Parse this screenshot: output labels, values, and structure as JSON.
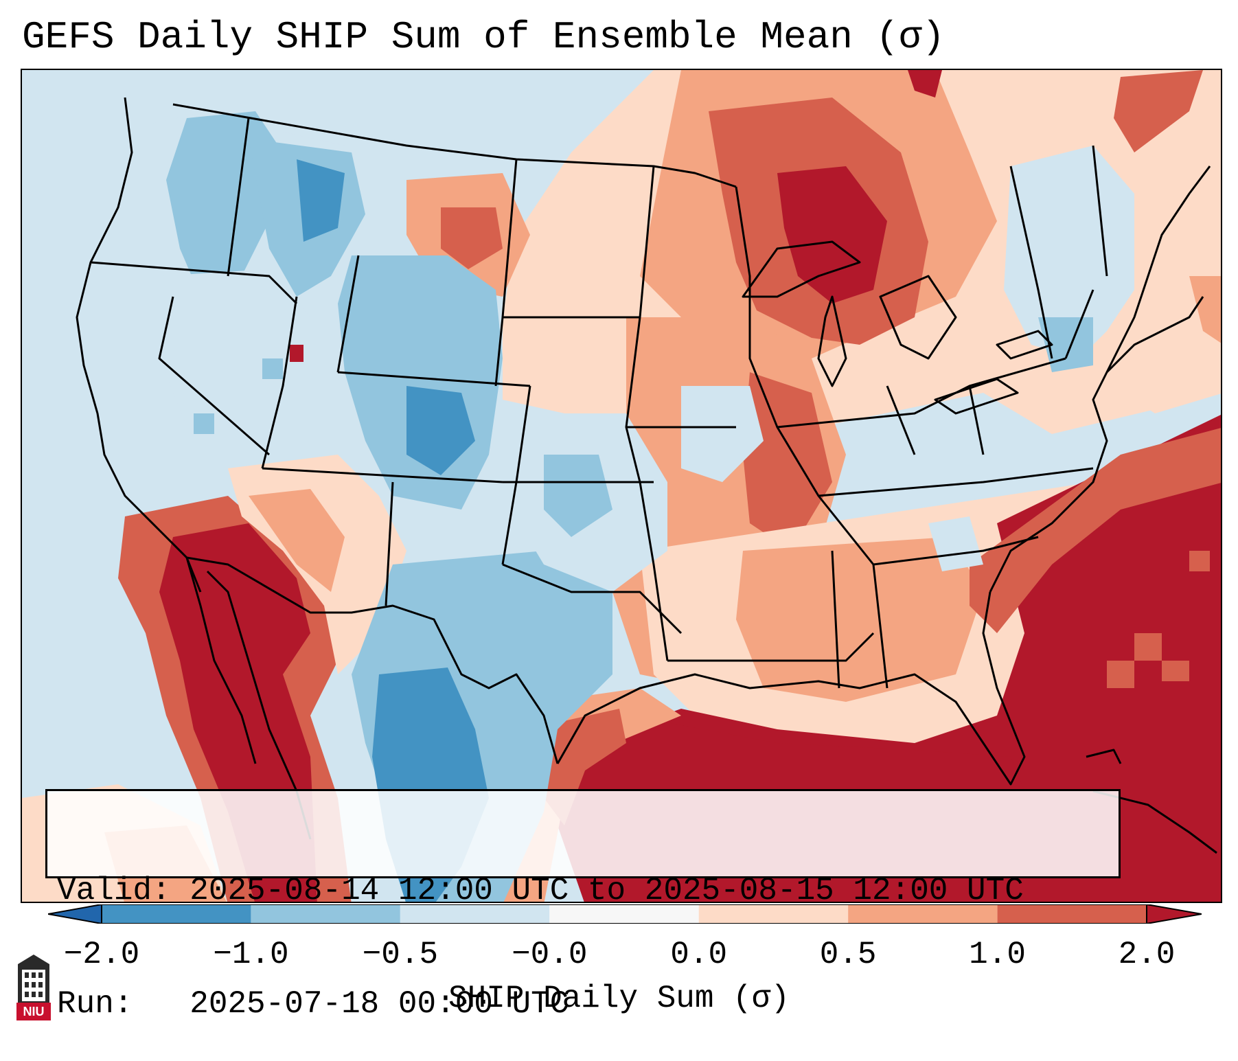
{
  "title": "GEFS Daily SHIP Sum of Ensemble Mean (σ)",
  "info": {
    "valid_line": "Valid: 2025-08-14 12:00 UTC to 2025-08-15 12:00 UTC",
    "run_line": "Run:   2025-07-18 00:00 UTC"
  },
  "colorbar": {
    "label": "SHIP Daily Sum (σ)",
    "ticks": [
      "−2.0",
      "−1.0",
      "−0.5",
      "−0.0",
      "0.0",
      "0.5",
      "1.0",
      "2.0"
    ],
    "colors": [
      "#4393c3",
      "#92c5de",
      "#d1e5f0",
      "#f7f7f7",
      "#fddbc7",
      "#f4a582",
      "#d6604d",
      "#b2182b"
    ],
    "extend_low_color": "#2166ac",
    "extend_high_color": "#b2182b"
  },
  "map": {
    "region": "Contiguous United States",
    "ocean_color": "#d1e5f0",
    "border_color": "#000000"
  },
  "logo": {
    "text": "NIU",
    "color": "#c8102e"
  }
}
